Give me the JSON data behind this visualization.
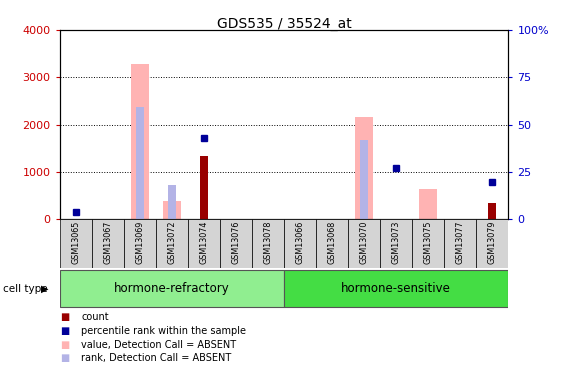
{
  "title": "GDS535 / 35524_at",
  "categories": [
    "GSM13065",
    "GSM13067",
    "GSM13069",
    "GSM13072",
    "GSM13074",
    "GSM13076",
    "GSM13078",
    "GSM13066",
    "GSM13068",
    "GSM13070",
    "GSM13073",
    "GSM13075",
    "GSM13077",
    "GSM13079"
  ],
  "n_cats": 14,
  "left_ylim": [
    0,
    4000
  ],
  "right_ylim": [
    0,
    100
  ],
  "left_yticks": [
    0,
    1000,
    2000,
    3000,
    4000
  ],
  "right_yticks": [
    0,
    25,
    50,
    75,
    100
  ],
  "left_ylabel_color": "#cc0000",
  "right_ylabel_color": "#0000cc",
  "value_absent_color": "#ffb3b3",
  "rank_absent_color": "#b3b3e6",
  "count_color": "#990000",
  "rank_color": "#000099",
  "value_absent": [
    null,
    null,
    3280,
    380,
    null,
    null,
    null,
    null,
    null,
    2170,
    null,
    640,
    null,
    null
  ],
  "rank_absent_vals": [
    null,
    null,
    2380,
    720,
    null,
    null,
    null,
    null,
    null,
    1680,
    null,
    null,
    null,
    null
  ],
  "count_vals": [
    null,
    null,
    null,
    null,
    1340,
    null,
    null,
    null,
    null,
    null,
    null,
    null,
    null,
    340
  ],
  "rank_present_vals": [
    4,
    null,
    null,
    null,
    43,
    null,
    null,
    null,
    null,
    null,
    27,
    null,
    null,
    20
  ],
  "group_label_refractory": "hormone-refractory",
  "group_label_sensitive": "hormone-sensitive",
  "cell_type_label": "cell type",
  "legend_items": [
    {
      "label": "count",
      "color": "#990000"
    },
    {
      "label": "percentile rank within the sample",
      "color": "#000099"
    },
    {
      "label": "value, Detection Call = ABSENT",
      "color": "#ffb3b3"
    },
    {
      "label": "rank, Detection Call = ABSENT",
      "color": "#b3b3e6"
    }
  ],
  "background_color": "#ffffff"
}
